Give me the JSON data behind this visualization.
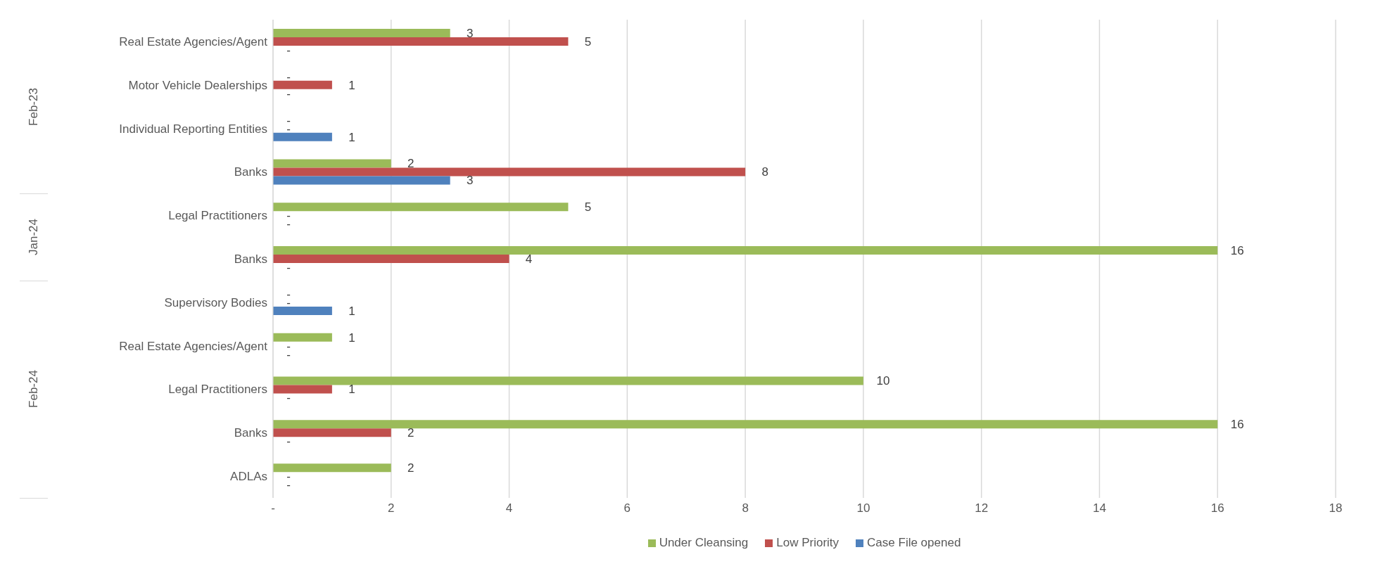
{
  "chart_data": {
    "type": "bar",
    "orientation": "horizontal",
    "categories": [
      "Real Estate Agencies/Agent",
      "Motor Vehicle Dealerships",
      "Individual Reporting Entities",
      "Banks",
      "Legal Practitioners",
      "Banks",
      "Supervisory Bodies",
      "Real Estate Agencies/Agent",
      "Legal Practitioners",
      "Banks",
      "ADLAs"
    ],
    "annotations": [
      "Feb-23",
      "Jan-24",
      "Feb-24"
    ],
    "series": [
      {
        "name": "Under Cleansing",
        "color": "#9bbb59",
        "values": [
          3,
          0,
          0,
          2,
          5,
          16,
          0,
          1,
          10,
          16,
          2
        ],
        "value_labels": [
          "3",
          "-",
          "-",
          "2",
          "5",
          "16",
          "-",
          "1",
          "10",
          "16",
          "2"
        ]
      },
      {
        "name": "Low Priority",
        "color": "#c0504d",
        "values": [
          5,
          1,
          0,
          8,
          0,
          4,
          0,
          0,
          1,
          2,
          0
        ],
        "value_labels": [
          "5",
          "1",
          "-",
          "8",
          "-",
          "4",
          "-",
          "-",
          "1",
          "2",
          "-"
        ]
      },
      {
        "name": "Case File opened",
        "color": "#4f81bd",
        "values": [
          0,
          0,
          1,
          3,
          0,
          0,
          1,
          0,
          0,
          0,
          0
        ],
        "value_labels": [
          "-",
          "-",
          "1",
          "3",
          "-",
          "-",
          "1",
          "-",
          "-",
          "-",
          "-"
        ]
      }
    ],
    "xlim": [
      0,
      18
    ],
    "xticks": [
      {
        "value": 0,
        "label": "-"
      },
      2,
      4,
      6,
      8,
      10,
      12,
      14,
      16,
      18
    ],
    "grid": "x",
    "legend": "bottom"
  }
}
